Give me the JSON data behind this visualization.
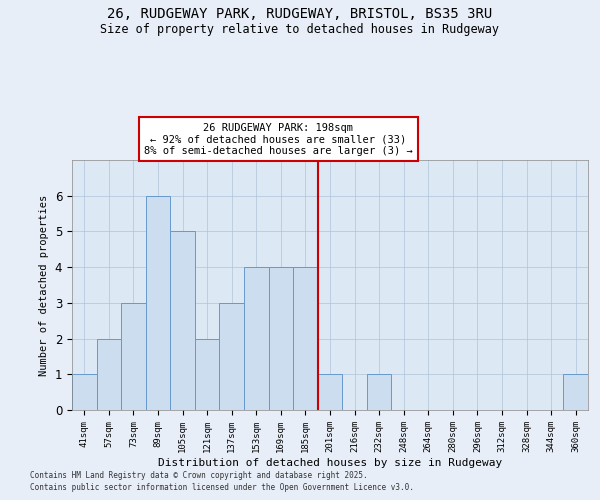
{
  "title_line1": "26, RUDGEWAY PARK, RUDGEWAY, BRISTOL, BS35 3RU",
  "title_line2": "Size of property relative to detached houses in Rudgeway",
  "xlabel": "Distribution of detached houses by size in Rudgeway",
  "ylabel": "Number of detached properties",
  "categories": [
    "41sqm",
    "57sqm",
    "73sqm",
    "89sqm",
    "105sqm",
    "121sqm",
    "137sqm",
    "153sqm",
    "169sqm",
    "185sqm",
    "201sqm",
    "216sqm",
    "232sqm",
    "248sqm",
    "264sqm",
    "280sqm",
    "296sqm",
    "312sqm",
    "328sqm",
    "344sqm",
    "360sqm"
  ],
  "values": [
    1,
    2,
    3,
    6,
    5,
    2,
    3,
    4,
    4,
    4,
    1,
    0,
    1,
    0,
    0,
    0,
    0,
    0,
    0,
    0,
    1
  ],
  "bar_color": "#ccddf0",
  "bar_edge_color": "#6699cc",
  "vline_x": 10.0,
  "vline_color": "#cc0000",
  "annotation_text": "26 RUDGEWAY PARK: 198sqm\n← 92% of detached houses are smaller (33)\n8% of semi-detached houses are larger (3) →",
  "annotation_box_color": "#ffffff",
  "annotation_box_edge": "#cc0000",
  "ylim": [
    0,
    7
  ],
  "yticks": [
    0,
    1,
    2,
    3,
    4,
    5,
    6
  ],
  "background_color": "#dce8f4",
  "footer_line1": "Contains HM Land Registry data © Crown copyright and database right 2025.",
  "footer_line2": "Contains public sector information licensed under the Open Government Licence v3.0."
}
